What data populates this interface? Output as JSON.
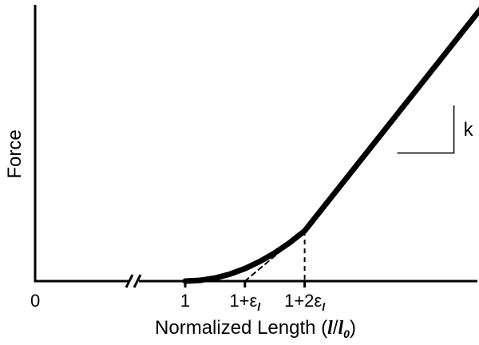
{
  "chart_data": {
    "type": "line",
    "title": "",
    "xlabel": "Normalized Length",
    "xlabel_fraction": {
      "num": "l",
      "den_base": "l",
      "den_sub": "0"
    },
    "ylabel": "Force",
    "axis_break_on_x": true,
    "xlim": [
      0,
      1.5
    ],
    "ylim": [
      0,
      1.0
    ],
    "grid": false,
    "legend": "none",
    "origin_label": "0",
    "ticks": [
      {
        "x": 1.0,
        "label": "1"
      },
      {
        "x": 1.1,
        "label_prefix": "1+",
        "label_symbol": "ε",
        "label_sub": "l"
      },
      {
        "x": 1.2,
        "label_prefix": "1+2",
        "label_symbol": "ε",
        "label_sub": "l"
      }
    ],
    "series": [
      {
        "style": "solid",
        "x": [
          1.0,
          1.025,
          1.05,
          1.075,
          1.1,
          1.125,
          1.15,
          1.175,
          1.2,
          1.55
        ],
        "y": [
          0.0,
          0.0025,
          0.01,
          0.0225,
          0.04,
          0.0625,
          0.09,
          0.1225,
          0.16,
          1.0
        ]
      },
      {
        "style": "dashed",
        "x": [
          1.1,
          1.2
        ],
        "y": [
          0.0,
          0.16
        ]
      }
    ],
    "reference_lines": [
      {
        "style": "dashed",
        "orientation": "vertical",
        "x": 1.2,
        "y_from": 0,
        "y_to": 0.16
      }
    ],
    "slope_annotation": {
      "label": "k",
      "slope": 1.6
    }
  }
}
